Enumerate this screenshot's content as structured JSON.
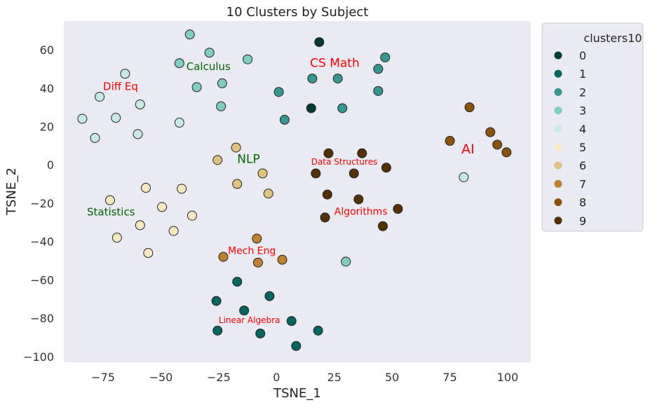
{
  "chart_data": {
    "type": "scatter",
    "title": "10 Clusters by Subject",
    "xlabel": "TSNE_1",
    "ylabel": "TSNE_2",
    "xlim": [
      -92,
      110
    ],
    "ylim": [
      -103,
      75
    ],
    "xticks": [
      -75,
      -50,
      -25,
      0,
      25,
      50,
      75,
      100
    ],
    "yticks": [
      -100,
      -80,
      -60,
      -40,
      -20,
      0,
      20,
      40,
      60
    ],
    "xtick_labels": [
      "−75",
      "−50",
      "−25",
      "0",
      "25",
      "50",
      "75",
      "100"
    ],
    "ytick_labels": [
      "−100",
      "−80",
      "−60",
      "−40",
      "−20",
      "0",
      "20",
      "40",
      "60"
    ],
    "grid": false,
    "background": "#eaeaf2",
    "legend": {
      "title": "clusters10",
      "placement": "outside-right-top",
      "entries": [
        "0",
        "1",
        "2",
        "3",
        "4",
        "5",
        "6",
        "7",
        "8",
        "9"
      ]
    },
    "series": [
      {
        "name": "0",
        "color": "#003c30",
        "points": [
          [
            18.5,
            64
          ],
          [
            15,
            29.5
          ]
        ]
      },
      {
        "name": "1",
        "color": "#01665e",
        "points": [
          [
            -17,
            -61
          ],
          [
            -26,
            -71
          ],
          [
            -3,
            -68.5
          ],
          [
            -14,
            -76
          ],
          [
            6.5,
            -81.5
          ],
          [
            -25.5,
            -86.5
          ],
          [
            -7,
            -88
          ],
          [
            18,
            -86.5
          ],
          [
            8.5,
            -94.5
          ]
        ]
      },
      {
        "name": "2",
        "color": "#35978f",
        "points": [
          [
            15.5,
            45
          ],
          [
            26.5,
            45
          ],
          [
            44,
            50
          ],
          [
            47,
            56
          ],
          [
            44,
            38.5
          ],
          [
            28.5,
            29.5
          ],
          [
            1,
            38
          ],
          [
            3.5,
            23.5
          ]
        ]
      },
      {
        "name": "3",
        "color": "#80cdc1",
        "points": [
          [
            -37.5,
            68
          ],
          [
            -29,
            58.5
          ],
          [
            -12.5,
            55
          ],
          [
            -42,
            53
          ],
          [
            -23.5,
            42.5
          ],
          [
            -34.5,
            40.5
          ],
          [
            -24,
            30.5
          ],
          [
            30,
            -50.5
          ]
        ]
      },
      {
        "name": "4",
        "color": "#c7eae5",
        "points": [
          [
            -65.5,
            47.5
          ],
          [
            -76.5,
            35.5
          ],
          [
            -59,
            31.5
          ],
          [
            -69.5,
            24.5
          ],
          [
            -84,
            24
          ],
          [
            -60,
            16
          ],
          [
            -42,
            22
          ],
          [
            -78.5,
            14
          ],
          [
            81,
            -6.5
          ]
        ]
      },
      {
        "name": "5",
        "color": "#f6e8c3",
        "points": [
          [
            -56.5,
            -12
          ],
          [
            -41,
            -12.5
          ],
          [
            -72,
            -18.5
          ],
          [
            -49.5,
            -22
          ],
          [
            -36.5,
            -26.5
          ],
          [
            -59,
            -31.5
          ],
          [
            -44.5,
            -34.5
          ],
          [
            -69,
            -38
          ],
          [
            -55.5,
            -46
          ]
        ]
      },
      {
        "name": "6",
        "color": "#dfc27d",
        "points": [
          [
            -17.5,
            9
          ],
          [
            -25.5,
            2.5
          ],
          [
            -6,
            -4.5
          ],
          [
            -17,
            -10
          ],
          [
            -3.5,
            -15
          ]
        ]
      },
      {
        "name": "7",
        "color": "#bf812d",
        "points": [
          [
            -8.5,
            -38.5
          ],
          [
            -23,
            -48
          ],
          [
            -8,
            -51
          ],
          [
            2.5,
            -49.5
          ]
        ]
      },
      {
        "name": "8",
        "color": "#8c510a",
        "points": [
          [
            83.5,
            30
          ],
          [
            92.5,
            17
          ],
          [
            75,
            12.5
          ],
          [
            95.5,
            10.5
          ],
          [
            99.5,
            6.5
          ]
        ]
      },
      {
        "name": "9",
        "color": "#543005",
        "points": [
          [
            22.5,
            6
          ],
          [
            37,
            6
          ],
          [
            17,
            -4.5
          ],
          [
            33.5,
            -4.5
          ],
          [
            47.5,
            -1.5
          ],
          [
            22,
            -15.5
          ],
          [
            35.5,
            -18
          ],
          [
            52.5,
            -23
          ],
          [
            21,
            -27.5
          ],
          [
            46,
            -32
          ]
        ]
      }
    ],
    "annotations": [
      {
        "text": "CS Math",
        "x": 14.5,
        "y": 51,
        "color": "#ff0000",
        "size": 17
      },
      {
        "text": "Calculus",
        "x": -39,
        "y": 49.5,
        "color": "#006400",
        "size": 15
      },
      {
        "text": "Diff Eq",
        "x": -75,
        "y": 39,
        "color": "#ff0000",
        "size": 15
      },
      {
        "text": "NLP",
        "x": -17,
        "y": 1,
        "color": "#006400",
        "size": 17
      },
      {
        "text": "Data Structures",
        "x": 15,
        "y": 0,
        "color": "#ff0000",
        "size": 12
      },
      {
        "text": "AI",
        "x": 80,
        "y": 6,
        "color": "#ff0000",
        "size": 19
      },
      {
        "text": "Statistics",
        "x": -82,
        "y": -26.5,
        "color": "#006400",
        "size": 15
      },
      {
        "text": "Algorithms",
        "x": 25,
        "y": -26,
        "color": "#ff0000",
        "size": 14
      },
      {
        "text": "Mech Eng",
        "x": -21,
        "y": -46.5,
        "color": "#ff0000",
        "size": 14
      },
      {
        "text": "Linear Algebra",
        "x": -25,
        "y": -82.5,
        "color": "#ff0000",
        "size": 12
      }
    ]
  }
}
